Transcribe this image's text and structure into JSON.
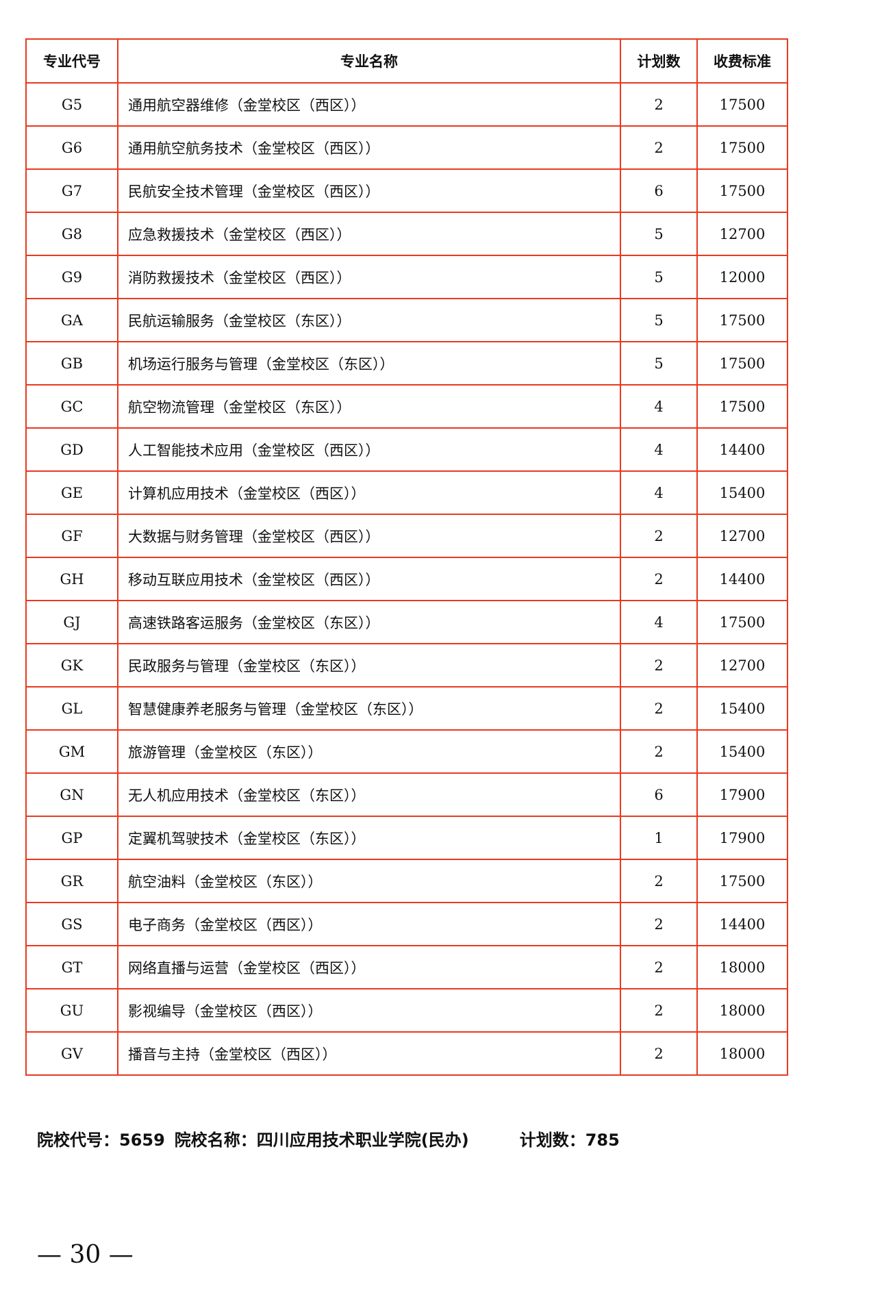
{
  "table": {
    "headers": [
      "专业代号",
      "专业名称",
      "计划数",
      "收费标准"
    ],
    "rows": [
      [
        "G5",
        "通用航空器维修（金堂校区（西区））",
        "2",
        "17500"
      ],
      [
        "G6",
        "通用航空航务技术（金堂校区（西区））",
        "2",
        "17500"
      ],
      [
        "G7",
        "民航安全技术管理（金堂校区（西区））",
        "6",
        "17500"
      ],
      [
        "G8",
        "应急救援技术（金堂校区（西区））",
        "5",
        "12700"
      ],
      [
        "G9",
        "消防救援技术（金堂校区（西区））",
        "5",
        "12000"
      ],
      [
        "GA",
        "民航运输服务（金堂校区（东区））",
        "5",
        "17500"
      ],
      [
        "GB",
        "机场运行服务与管理（金堂校区（东区））",
        "5",
        "17500"
      ],
      [
        "GC",
        "航空物流管理（金堂校区（东区））",
        "4",
        "17500"
      ],
      [
        "GD",
        "人工智能技术应用（金堂校区（西区））",
        "4",
        "14400"
      ],
      [
        "GE",
        "计算机应用技术（金堂校区（西区））",
        "4",
        "15400"
      ],
      [
        "GF",
        "大数据与财务管理（金堂校区（西区））",
        "2",
        "12700"
      ],
      [
        "GH",
        "移动互联应用技术（金堂校区（西区））",
        "2",
        "14400"
      ],
      [
        "GJ",
        "高速铁路客运服务（金堂校区（东区））",
        "4",
        "17500"
      ],
      [
        "GK",
        "民政服务与管理（金堂校区（东区））",
        "2",
        "12700"
      ],
      [
        "GL",
        "智慧健康养老服务与管理（金堂校区（东区））",
        "2",
        "15400"
      ],
      [
        "GM",
        "旅游管理（金堂校区（东区））",
        "2",
        "15400"
      ],
      [
        "GN",
        "无人机应用技术（金堂校区（东区））",
        "6",
        "17900"
      ],
      [
        "GP",
        "定翼机驾驶技术（金堂校区（东区））",
        "1",
        "17900"
      ],
      [
        "GR",
        "航空油料（金堂校区（东区））",
        "2",
        "17500"
      ],
      [
        "GS",
        "电子商务（金堂校区（西区））",
        "2",
        "14400"
      ],
      [
        "GT",
        "网络直播与运营（金堂校区（西区））",
        "2",
        "18000"
      ],
      [
        "GU",
        "影视编导（金堂校区（西区））",
        "2",
        "18000"
      ],
      [
        "GV",
        "播音与主持（金堂校区（西区））",
        "2",
        "18000"
      ]
    ]
  },
  "summary": {
    "school_code": "院校代号：5659",
    "school_name": "院校名称：四川应用技术职业学院(民办)",
    "plan_count": "计划数：785"
  },
  "page_number": "— 30 —",
  "colors": {
    "border": "#e8391f"
  }
}
